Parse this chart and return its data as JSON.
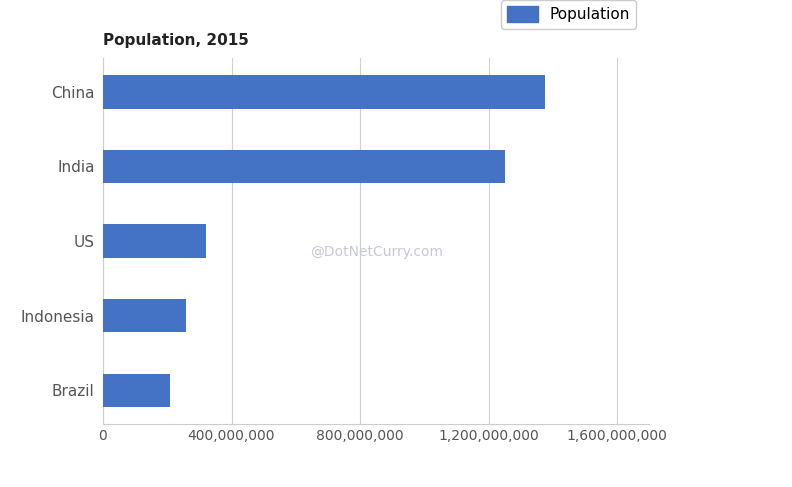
{
  "title": "Population, 2015",
  "categories": [
    "Brazil",
    "Indonesia",
    "US",
    "India",
    "China"
  ],
  "values": [
    207847528,
    257563815,
    321418820,
    1251695584,
    1376048943
  ],
  "bar_color": "#4472C4",
  "legend_label": "Population",
  "xlim": [
    0,
    1700000000
  ],
  "xticks": [
    0,
    400000000,
    800000000,
    1200000000,
    1600000000
  ],
  "xtick_labels": [
    "0",
    "400,000,000",
    "800,000,000",
    "1,200,000,000",
    "1,600,000,000"
  ],
  "watermark": "@DotNetCurry.com",
  "watermark_color": "#c8c8d8",
  "background_color": "#ffffff",
  "title_fontsize": 11,
  "ytick_fontsize": 11,
  "xtick_fontsize": 10,
  "legend_fontsize": 11,
  "bar_height": 0.45,
  "grid_color": "#d0d0d0"
}
